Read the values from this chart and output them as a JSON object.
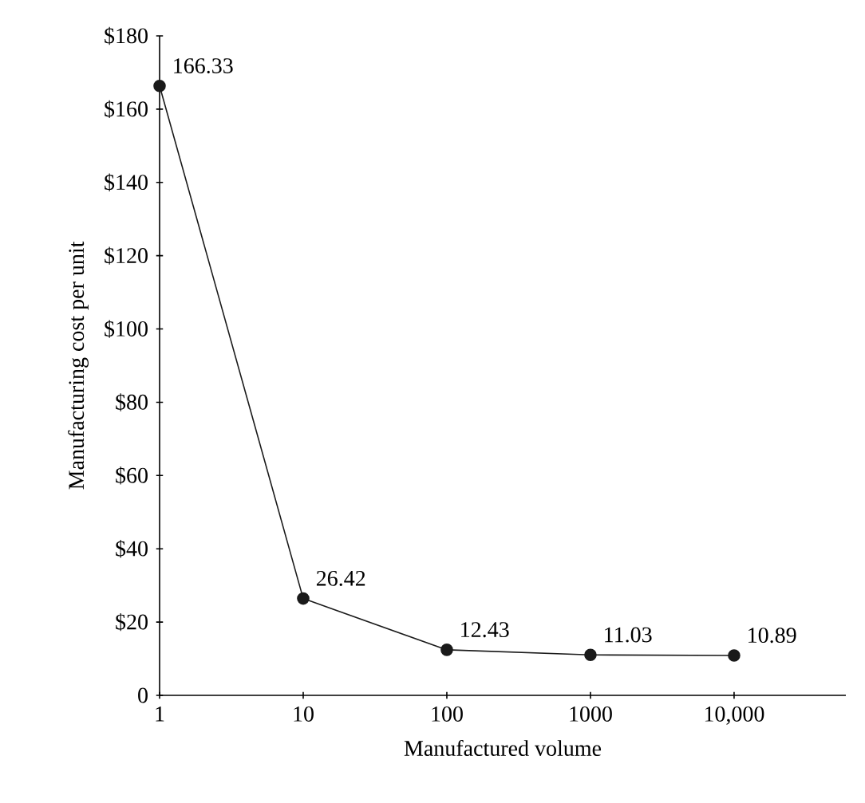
{
  "chart_data": {
    "type": "line",
    "xlabel": "Manufactured volume",
    "ylabel": "Manufacturing cost per unit",
    "x": [
      1,
      10,
      100,
      1000,
      10000
    ],
    "values": [
      166.33,
      26.42,
      12.43,
      11.03,
      10.89
    ],
    "color": "#1a1a1a",
    "marker": "circle",
    "line_style": "solid",
    "data_labels": true,
    "grid": false,
    "log": "x",
    "xlim": [
      1,
      60000
    ],
    "xticks": [
      1,
      10,
      100,
      1000,
      {
        "value": 10000,
        "label": "10,000"
      }
    ],
    "ylim": [
      0,
      180
    ],
    "yticks": [
      {
        "value": 0,
        "label": "0"
      },
      {
        "value": 20,
        "label": "$20"
      },
      {
        "value": 40,
        "label": "$40"
      },
      {
        "value": 60,
        "label": "$60"
      },
      {
        "value": 80,
        "label": "$80"
      },
      {
        "value": 100,
        "label": "$100"
      },
      {
        "value": 120,
        "label": "$120"
      },
      {
        "value": 140,
        "label": "$140"
      },
      {
        "value": 160,
        "label": "$160"
      },
      {
        "value": 180,
        "label": "$180"
      }
    ]
  }
}
